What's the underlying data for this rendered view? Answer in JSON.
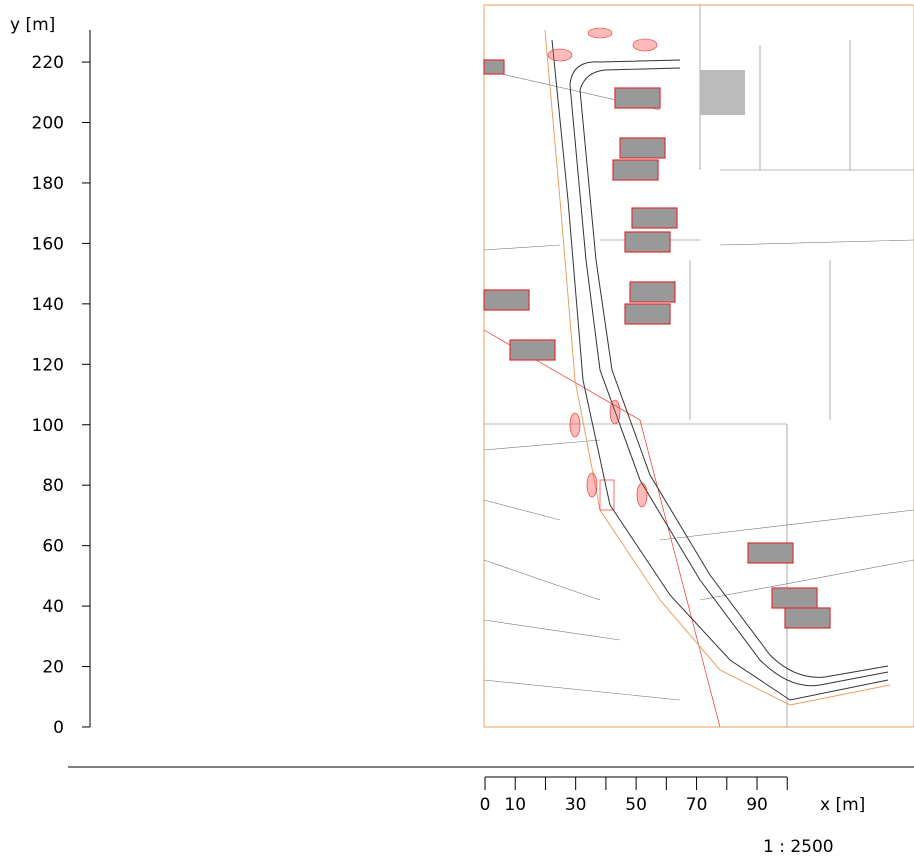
{
  "y_axis": {
    "label": "y [m]",
    "ticks": [
      0,
      20,
      40,
      60,
      80,
      100,
      120,
      140,
      160,
      180,
      200,
      220
    ]
  },
  "x_axis": {
    "label": "x [m]",
    "ticks": [
      0,
      10,
      30,
      50,
      70,
      90
    ],
    "unlabeled_ticks": [
      20,
      40,
      60,
      80,
      100
    ]
  },
  "scale": "1 : 2500"
}
